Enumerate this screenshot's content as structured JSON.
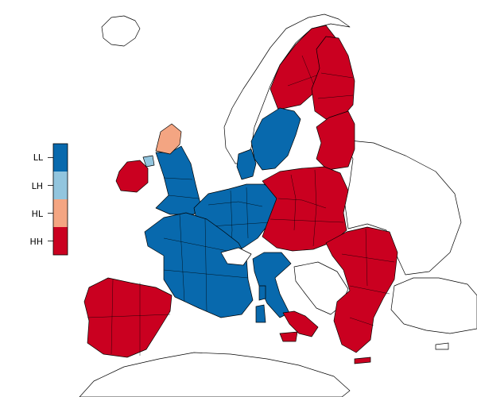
{
  "legend": {
    "items": [
      {
        "code": "LL",
        "label": "LL",
        "color": "#0869ad"
      },
      {
        "code": "LH",
        "label": "LH",
        "color": "#92c5de"
      },
      {
        "code": "HL",
        "label": "HL",
        "color": "#f4a582"
      },
      {
        "code": "HH",
        "label": "HH",
        "color": "#ca0020"
      }
    ]
  },
  "map": {
    "colors": {
      "outline": "#000000",
      "non_eu_fill": "#ffffff",
      "background": "#ffffff"
    },
    "regions": [
      {
        "name": "iceland",
        "category": "none"
      },
      {
        "name": "norway",
        "category": "none"
      },
      {
        "name": "sweden-south",
        "category": "LL"
      },
      {
        "name": "sweden-north",
        "category": "HH"
      },
      {
        "name": "finland",
        "category": "HH"
      },
      {
        "name": "baltic-states",
        "category": "HH"
      },
      {
        "name": "scotland-north",
        "category": "HL"
      },
      {
        "name": "great-britain",
        "category": "LL"
      },
      {
        "name": "ireland",
        "category": "HH"
      },
      {
        "name": "northern-ireland",
        "category": "LH"
      },
      {
        "name": "denmark",
        "category": "LL"
      },
      {
        "name": "benelux-germany-west",
        "category": "LL"
      },
      {
        "name": "germany-east-poland",
        "category": "HH"
      },
      {
        "name": "france",
        "category": "LL"
      },
      {
        "name": "iberia",
        "category": "HH"
      },
      {
        "name": "italy-north",
        "category": "LL"
      },
      {
        "name": "italy-south",
        "category": "HH"
      },
      {
        "name": "balkans",
        "category": "HH"
      },
      {
        "name": "switzerland",
        "category": "none"
      },
      {
        "name": "western-balkans",
        "category": "none"
      },
      {
        "name": "eastern-europe",
        "category": "none"
      },
      {
        "name": "turkey",
        "category": "none"
      },
      {
        "name": "north-africa",
        "category": "none"
      },
      {
        "name": "corsica",
        "category": "LL"
      },
      {
        "name": "sardinia",
        "category": "LL"
      },
      {
        "name": "sicily",
        "category": "HH"
      },
      {
        "name": "crete",
        "category": "HH"
      },
      {
        "name": "cyprus",
        "category": "none"
      }
    ]
  }
}
